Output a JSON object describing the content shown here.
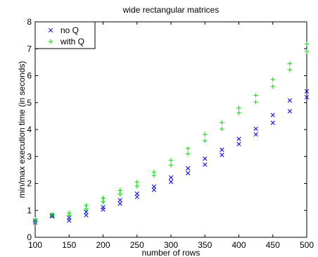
{
  "chart_data": {
    "type": "scatter",
    "title": "wide rectangular matrices",
    "xlabel": "number of rows",
    "ylabel": "min/max execution time (in seconds)",
    "xlim": [
      100,
      500
    ],
    "ylim": [
      0,
      8
    ],
    "xticks": [
      100,
      150,
      200,
      250,
      300,
      350,
      400,
      450,
      500
    ],
    "yticks": [
      0,
      1,
      2,
      3,
      4,
      5,
      6,
      7,
      8
    ],
    "grid": false,
    "legend_position": "top-left",
    "series": [
      {
        "name": "no Q",
        "marker": "x",
        "color": "#0000ff",
        "points": [
          [
            100,
            0.55
          ],
          [
            100,
            0.62
          ],
          [
            125,
            0.78
          ],
          [
            125,
            0.82
          ],
          [
            150,
            0.62
          ],
          [
            150,
            0.72
          ],
          [
            175,
            0.82
          ],
          [
            175,
            0.94
          ],
          [
            200,
            1.03
          ],
          [
            200,
            1.12
          ],
          [
            225,
            1.25
          ],
          [
            225,
            1.38
          ],
          [
            250,
            1.5
          ],
          [
            250,
            1.62
          ],
          [
            275,
            1.76
          ],
          [
            275,
            1.88
          ],
          [
            300,
            2.06
          ],
          [
            300,
            2.22
          ],
          [
            325,
            2.38
          ],
          [
            325,
            2.56
          ],
          [
            350,
            2.7
          ],
          [
            350,
            2.92
          ],
          [
            375,
            3.06
          ],
          [
            375,
            3.25
          ],
          [
            400,
            3.46
          ],
          [
            400,
            3.65
          ],
          [
            425,
            3.82
          ],
          [
            425,
            4.03
          ],
          [
            450,
            4.25
          ],
          [
            450,
            4.54
          ],
          [
            475,
            4.68
          ],
          [
            475,
            5.08
          ],
          [
            500,
            5.2
          ],
          [
            500,
            5.42
          ]
        ]
      },
      {
        "name": "with Q",
        "marker": "+",
        "color": "#00dd00",
        "points": [
          [
            100,
            0.58
          ],
          [
            100,
            0.66
          ],
          [
            125,
            0.8
          ],
          [
            125,
            0.86
          ],
          [
            150,
            0.82
          ],
          [
            150,
            0.9
          ],
          [
            175,
            1.05
          ],
          [
            175,
            1.18
          ],
          [
            200,
            1.32
          ],
          [
            200,
            1.45
          ],
          [
            225,
            1.6
          ],
          [
            225,
            1.74
          ],
          [
            250,
            1.9
          ],
          [
            250,
            2.05
          ],
          [
            275,
            2.3
          ],
          [
            275,
            2.42
          ],
          [
            300,
            2.68
          ],
          [
            300,
            2.86
          ],
          [
            325,
            3.1
          ],
          [
            325,
            3.3
          ],
          [
            350,
            3.58
          ],
          [
            350,
            3.82
          ],
          [
            375,
            4.02
          ],
          [
            375,
            4.26
          ],
          [
            400,
            4.62
          ],
          [
            400,
            4.8
          ],
          [
            425,
            5.02
          ],
          [
            425,
            5.27
          ],
          [
            450,
            5.6
          ],
          [
            450,
            5.86
          ],
          [
            475,
            6.22
          ],
          [
            475,
            6.45
          ],
          [
            500,
            6.9
          ],
          [
            500,
            7.18
          ]
        ]
      }
    ]
  }
}
